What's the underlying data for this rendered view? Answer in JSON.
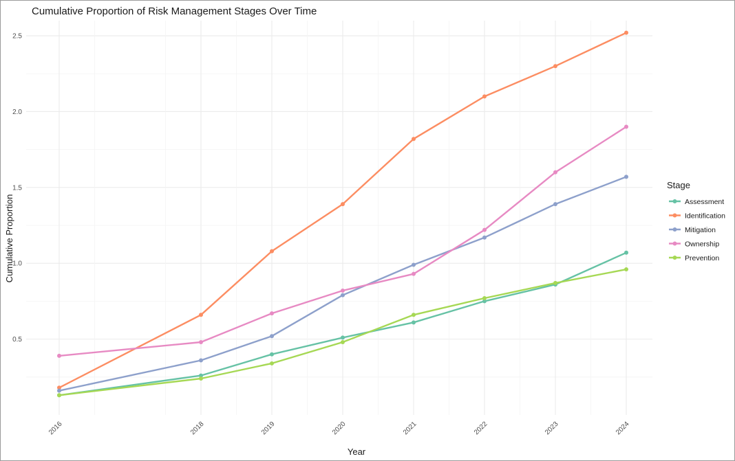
{
  "chart_data": {
    "type": "line",
    "title": "Cumulative Proportion of Risk Management Stages Over Time",
    "xlabel": "Year",
    "ylabel": "Cumulative Proportion",
    "x": [
      2016,
      2018,
      2019,
      2020,
      2021,
      2022,
      2023,
      2024
    ],
    "x_tick_labels": [
      "2016",
      "2018",
      "2019",
      "2020",
      "2021",
      "2022",
      "2023",
      "2024"
    ],
    "y_ticks": [
      0.5,
      1.0,
      1.5,
      2.0,
      2.5
    ],
    "y_tick_labels": [
      "0.5",
      "1.0",
      "1.5",
      "2.0",
      "2.5"
    ],
    "ylim": [
      0.0,
      2.6
    ],
    "grid": true,
    "legend_title": "Stage",
    "legend_position": "right",
    "series": [
      {
        "name": "Assessment",
        "color": "#66c2a5",
        "values": [
          0.13,
          0.26,
          0.4,
          0.51,
          0.61,
          0.75,
          0.86,
          1.07
        ]
      },
      {
        "name": "Identification",
        "color": "#fc8d62",
        "values": [
          0.18,
          0.66,
          1.08,
          1.39,
          1.82,
          2.1,
          2.3,
          2.52
        ]
      },
      {
        "name": "Mitigation",
        "color": "#8da0cb",
        "values": [
          0.16,
          0.36,
          0.52,
          0.79,
          0.99,
          1.17,
          1.39,
          1.57
        ]
      },
      {
        "name": "Ownership",
        "color": "#e78ac3",
        "values": [
          0.39,
          0.48,
          0.67,
          0.82,
          0.93,
          1.22,
          1.6,
          1.9
        ]
      },
      {
        "name": "Prevention",
        "color": "#a6d854",
        "values": [
          0.13,
          0.24,
          0.34,
          0.48,
          0.66,
          0.77,
          0.87,
          0.96
        ]
      }
    ]
  }
}
